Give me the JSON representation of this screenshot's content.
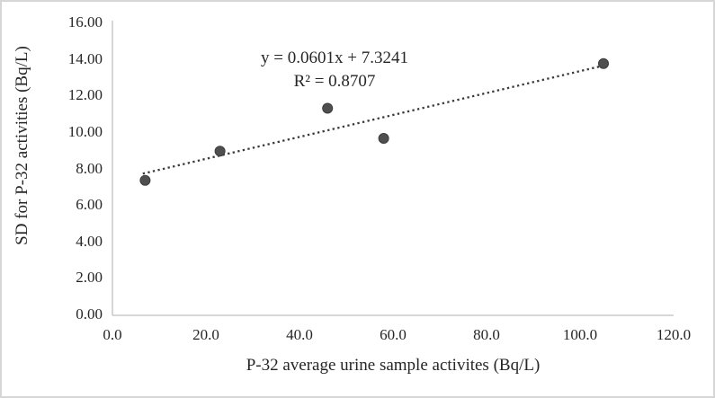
{
  "chart_data": {
    "type": "scatter",
    "title": "",
    "xlabel": "P-32 average urine sample activites (Bq/L)",
    "ylabel": "SD for P-32 activities (Bq/L)",
    "x": [
      7,
      23,
      46,
      58,
      105
    ],
    "y": [
      7.35,
      8.95,
      11.3,
      9.65,
      13.75
    ],
    "xlim": [
      0,
      120
    ],
    "ylim": [
      0,
      16
    ],
    "x_ticks": [
      "0.0",
      "20.0",
      "40.0",
      "60.0",
      "80.0",
      "100.0",
      "120.0"
    ],
    "y_ticks": [
      "0.00",
      "2.00",
      "4.00",
      "6.00",
      "8.00",
      "10.00",
      "12.00",
      "14.00",
      "16.00"
    ],
    "grid": false,
    "legend": false,
    "trendline": {
      "slope": 0.0601,
      "intercept": 7.3241,
      "x_start": 6.5,
      "x_end": 105.5,
      "equation": "y = 0.0601x + 7.3241",
      "r_squared_label": "R² = 0.8707",
      "style": "dotted"
    },
    "colors": {
      "marker_fill": "#4f4f4f",
      "marker_edge": "#3d3d3d",
      "trendline": "#3a3a3a",
      "axis_line": "#bfbfbf",
      "text": "#262626"
    }
  }
}
